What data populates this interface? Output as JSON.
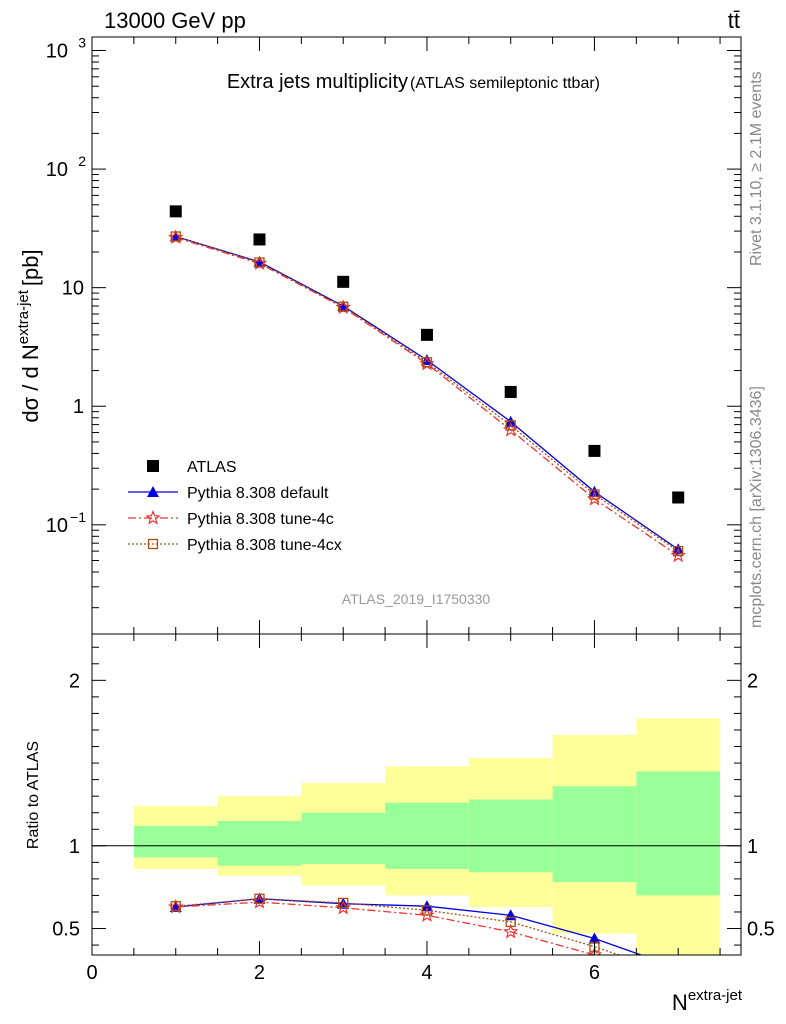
{
  "header": {
    "left": "13000 GeV pp",
    "right": "tt̄"
  },
  "side_labels": {
    "rivet": "Rivet 3.1.10, ≥ 2.1M events",
    "mcplots": "mcplots.cern.ch [arXiv:1306.3436]"
  },
  "colors": {
    "data": "#000000",
    "default": "#0000dd",
    "tune4c": "#ee3333",
    "tune4cx": "#b05010",
    "band_inner": "#99ff99",
    "band_outer": "#ffff99"
  },
  "chart_data": [
    {
      "type": "scatter",
      "title_main": "Extra jets multiplicity",
      "title_sub": "(ATLAS semileptonic ttbar)",
      "ylabel": "dσ / d N",
      "ylabel_sup": "extra-jet",
      "ylabel_unit": "[pb]",
      "yscale": "log",
      "ylim": [
        0.012,
        1300
      ],
      "xlim": [
        0,
        7.75
      ],
      "yticks": [
        {
          "value": 0.1,
          "base": "10",
          "exp": "−1"
        },
        {
          "value": 1,
          "base": "1",
          "exp": ""
        },
        {
          "value": 10,
          "base": "10",
          "exp": ""
        },
        {
          "value": 100,
          "base": "10",
          "exp": "2"
        },
        {
          "value": 1000,
          "base": "10",
          "exp": "3"
        }
      ],
      "watermark": "ATLAS_2019_I1750330",
      "legend_position": "lower-left",
      "x": [
        1,
        2,
        3,
        4,
        5,
        6,
        7
      ],
      "series": [
        {
          "name": "ATLAS",
          "key": "data",
          "marker": "square",
          "values": [
            44,
            25.5,
            11.2,
            4.0,
            1.32,
            0.42,
            0.17
          ]
        },
        {
          "name": "Pythia 8.308 default",
          "key": "default",
          "marker": "triangle",
          "line": "solid",
          "values": [
            27,
            16.5,
            7.0,
            2.45,
            0.74,
            0.19,
            0.062
          ]
        },
        {
          "name": "Pythia 8.308 tune-4c",
          "key": "tune4c",
          "marker": "star",
          "line": "dashdot",
          "values": [
            26.5,
            16.0,
            6.8,
            2.28,
            0.63,
            0.165,
            0.055
          ]
        },
        {
          "name": "Pythia 8.308 tune-4cx",
          "key": "tune4cx",
          "marker": "open-square",
          "line": "dotted",
          "values": [
            27,
            16.3,
            6.9,
            2.35,
            0.69,
            0.18,
            0.06
          ]
        }
      ]
    },
    {
      "type": "line",
      "ylabel": "Ratio to ATLAS",
      "xlabel": "N",
      "xlabel_sup": "extra-jet",
      "ylim": [
        0.34,
        2.28
      ],
      "xlim": [
        0,
        7.75
      ],
      "xticks": [
        0,
        2,
        4,
        6
      ],
      "yticks": [
        0.5,
        1,
        2
      ],
      "reference_line": 1,
      "bands": [
        {
          "x0": 0.5,
          "x1": 1.5,
          "inner": [
            0.93,
            1.12
          ],
          "outer": [
            0.86,
            1.24
          ]
        },
        {
          "x0": 1.5,
          "x1": 2.5,
          "inner": [
            0.88,
            1.15
          ],
          "outer": [
            0.82,
            1.3
          ]
        },
        {
          "x0": 2.5,
          "x1": 3.5,
          "inner": [
            0.89,
            1.2
          ],
          "outer": [
            0.76,
            1.38
          ]
        },
        {
          "x0": 3.5,
          "x1": 4.5,
          "inner": [
            0.86,
            1.26
          ],
          "outer": [
            0.7,
            1.48
          ]
        },
        {
          "x0": 4.5,
          "x1": 5.5,
          "inner": [
            0.84,
            1.28
          ],
          "outer": [
            0.63,
            1.53
          ]
        },
        {
          "x0": 5.5,
          "x1": 6.5,
          "inner": [
            0.78,
            1.36
          ],
          "outer": [
            0.47,
            1.67
          ]
        },
        {
          "x0": 6.5,
          "x1": 7.5,
          "inner": [
            0.7,
            1.45
          ],
          "outer": [
            0.2,
            1.77
          ]
        }
      ],
      "x": [
        1,
        2,
        3,
        4,
        5,
        6,
        7
      ],
      "series": [
        {
          "name": "Pythia 8.308 default",
          "key": "default",
          "marker": "triangle",
          "line": "solid",
          "values": [
            0.63,
            0.68,
            0.65,
            0.635,
            0.58,
            0.44,
            0.26
          ]
        },
        {
          "name": "Pythia 8.308 tune-4c",
          "key": "tune4c",
          "marker": "star",
          "line": "dashdot",
          "values": [
            0.63,
            0.66,
            0.625,
            0.58,
            0.48,
            0.34,
            0.2
          ]
        },
        {
          "name": "Pythia 8.308 tune-4cx",
          "key": "tune4cx",
          "marker": "open-square",
          "line": "dotted",
          "values": [
            0.635,
            0.68,
            0.655,
            0.61,
            0.54,
            0.39,
            0.22
          ]
        }
      ]
    }
  ]
}
